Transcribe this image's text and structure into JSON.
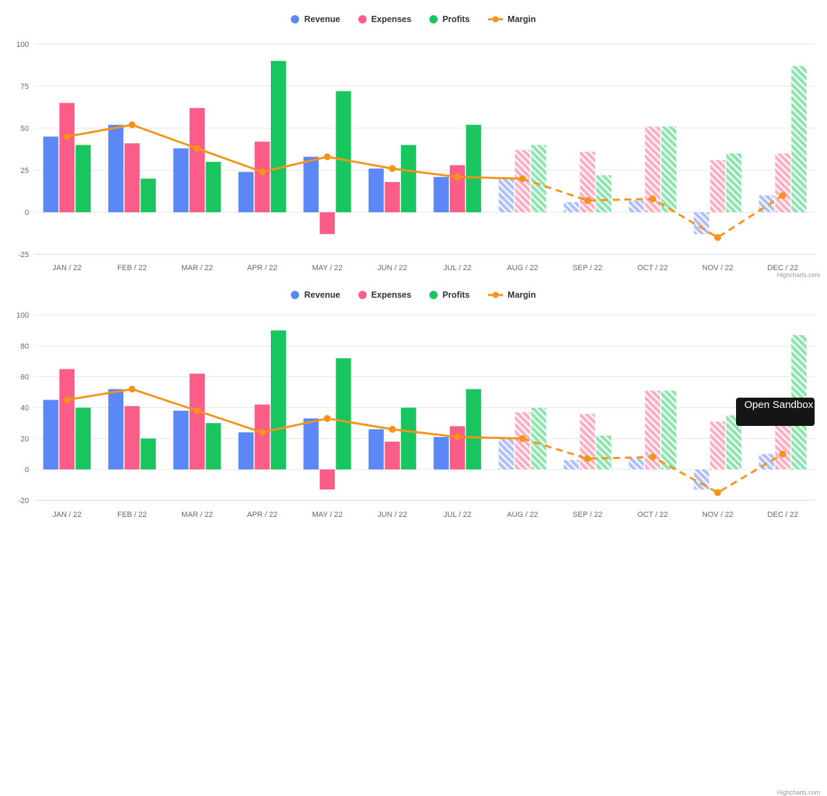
{
  "chart_data": [
    {
      "type": "combo-column-line",
      "title": "",
      "categories": [
        "JAN / 22",
        "FEB / 22",
        "MAR / 22",
        "APR / 22",
        "MAY / 22",
        "JUN / 22",
        "JUL / 22",
        "AUG / 22",
        "SEP / 22",
        "OCT / 22",
        "NOV / 22",
        "DEC / 22"
      ],
      "series": [
        {
          "name": "Revenue",
          "type": "column",
          "color": "#5c87f7",
          "hatch_color": "#b0c0f8",
          "values": [
            45,
            52,
            38,
            24,
            33,
            26,
            21,
            20,
            6,
            7,
            -13,
            10
          ]
        },
        {
          "name": "Expenses",
          "type": "column",
          "color": "#fa5d87",
          "hatch_color": "#fbb0c5",
          "values": [
            65,
            41,
            62,
            42,
            -13,
            18,
            28,
            37,
            36,
            51,
            31,
            35
          ]
        },
        {
          "name": "Profits",
          "type": "column",
          "color": "#18c55f",
          "hatch_color": "#8ee5ae",
          "values": [
            40,
            20,
            30,
            90,
            72,
            40,
            52,
            40,
            22,
            51,
            35,
            87
          ]
        },
        {
          "name": "Margin",
          "type": "line",
          "color": "#f69318",
          "values": [
            45,
            52,
            38,
            24,
            33,
            26,
            21,
            20,
            7,
            8,
            -15,
            10
          ]
        }
      ],
      "forecast_start_index": 7,
      "forecast_style": "diagonal-hatch-and-dashed-line",
      "yticks": [
        100,
        75,
        50,
        25,
        0,
        -25
      ],
      "ylim": [
        -25,
        100
      ],
      "grid": true,
      "legend_position": "top",
      "xlabel": "",
      "ylabel": "",
      "credits": "Highcharts.com"
    },
    {
      "type": "combo-column-line",
      "title": "",
      "categories": [
        "JAN / 22",
        "FEB / 22",
        "MAR / 22",
        "APR / 22",
        "MAY / 22",
        "JUN / 22",
        "JUL / 22",
        "AUG / 22",
        "SEP / 22",
        "OCT / 22",
        "NOV / 22",
        "DEC / 22"
      ],
      "series": [
        {
          "name": "Revenue",
          "type": "column",
          "color": "#5c87f7",
          "hatch_color": "#b0c0f8",
          "values": [
            45,
            52,
            38,
            24,
            33,
            26,
            21,
            20,
            6,
            7,
            -13,
            10
          ]
        },
        {
          "name": "Expenses",
          "type": "column",
          "color": "#fa5d87",
          "hatch_color": "#fbb0c5",
          "values": [
            65,
            41,
            62,
            42,
            -13,
            18,
            28,
            37,
            36,
            51,
            31,
            35
          ]
        },
        {
          "name": "Profits",
          "type": "column",
          "color": "#18c55f",
          "hatch_color": "#8ee5ae",
          "values": [
            40,
            20,
            30,
            90,
            72,
            40,
            52,
            40,
            22,
            51,
            35,
            87
          ]
        },
        {
          "name": "Margin",
          "type": "line",
          "color": "#f69318",
          "values": [
            45,
            52,
            38,
            24,
            33,
            26,
            21,
            20,
            7,
            8,
            -15,
            10
          ]
        }
      ],
      "forecast_start_index": 7,
      "forecast_style": "diagonal-hatch-and-dashed-line",
      "yticks": [
        100,
        80,
        60,
        40,
        20,
        0,
        -20
      ],
      "ylim": [
        -20,
        100
      ],
      "grid": true,
      "legend_position": "top",
      "xlabel": "",
      "ylabel": "",
      "credits": "Highcharts.com",
      "note": "partially cut off by viewport bottom"
    }
  ],
  "style": {
    "background": "#ffffff",
    "grid_color": "#e6e6e6",
    "axis_line_color": "#ccd6eb",
    "axis_label_color": "#666666",
    "legend_text_color": "#333333",
    "credits_color": "#999999"
  },
  "open_sandbox": {
    "label": "Open Sandbox",
    "background": "#151515",
    "text_color": "#ffffff"
  }
}
